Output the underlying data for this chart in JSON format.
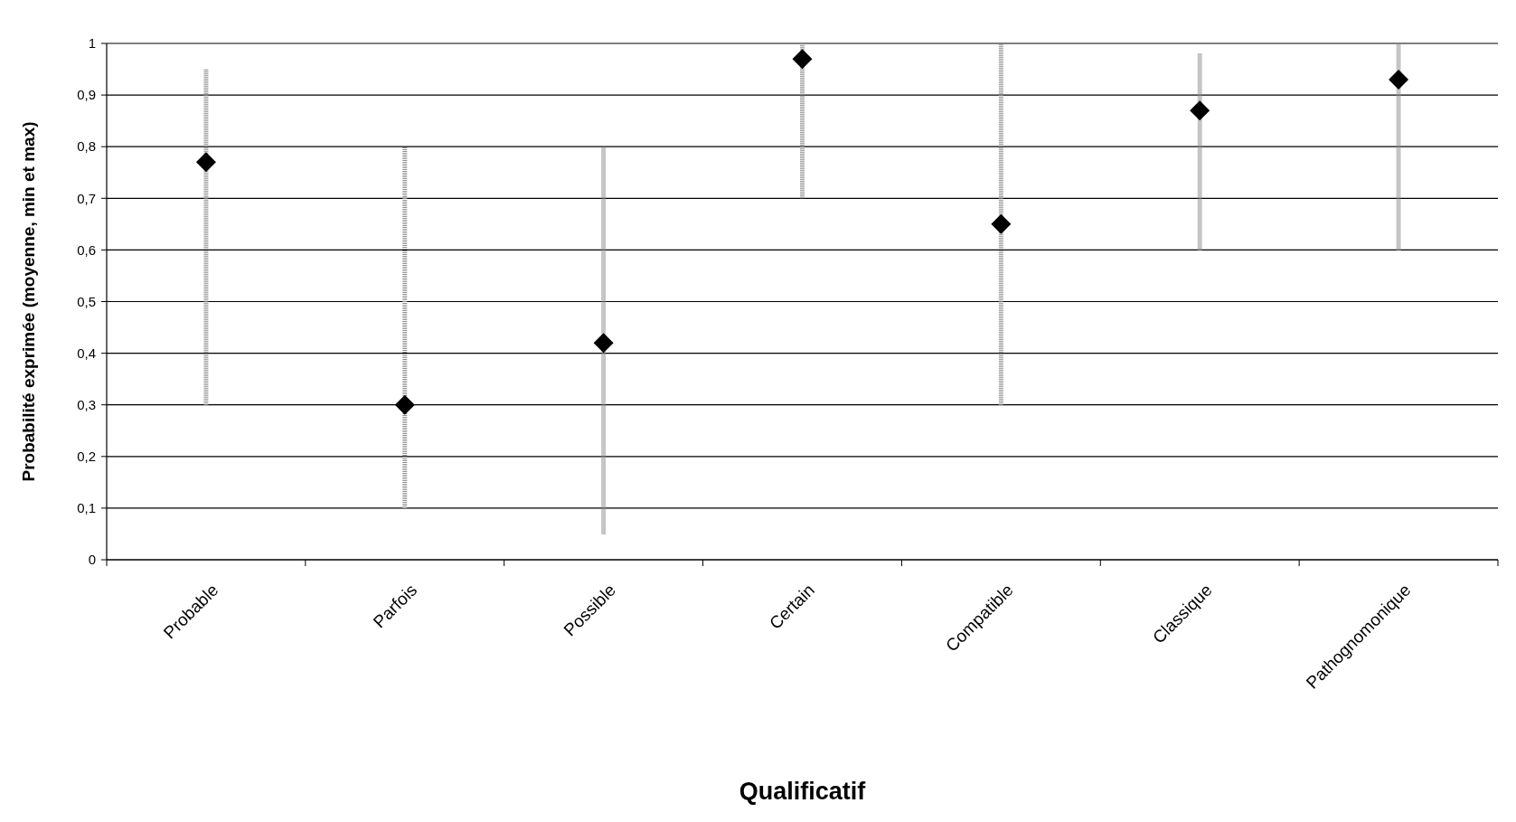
{
  "chart_data": {
    "type": "scatter",
    "xlabel": "Qualificatif",
    "ylabel": "Probabilité exprimée (moyenne, min et max)",
    "categories": [
      "Probable",
      "Parfois",
      "Possible",
      "Certain",
      "Compatible",
      "Classique",
      "Pathognomonique"
    ],
    "values": [
      0.77,
      0.3,
      0.42,
      0.97,
      0.65,
      0.87,
      0.93
    ],
    "errors": [
      [
        0.3,
        0.95
      ],
      [
        0.1,
        0.8
      ],
      [
        0.05,
        0.8
      ],
      [
        0.7,
        1.0
      ],
      [
        0.3,
        1.0
      ],
      [
        0.6,
        0.98
      ],
      [
        0.6,
        1.0
      ]
    ],
    "color": "#000000",
    "marker": "diamond",
    "grid": "y",
    "ylim": [
      0,
      1
    ],
    "yticks": [
      0,
      {
        "value": 0.1,
        "label": "0,1"
      },
      {
        "value": 0.2,
        "label": "0,2"
      },
      {
        "value": 0.3,
        "label": "0,3"
      },
      {
        "value": 0.4,
        "label": "0,4"
      },
      {
        "value": 0.5,
        "label": "0,5"
      },
      {
        "value": 0.6,
        "label": "0,6"
      },
      {
        "value": 0.7,
        "label": "0,7"
      },
      {
        "value": 0.8,
        "label": "0,8"
      },
      {
        "value": 0.9,
        "label": "0,9"
      },
      1
    ]
  }
}
